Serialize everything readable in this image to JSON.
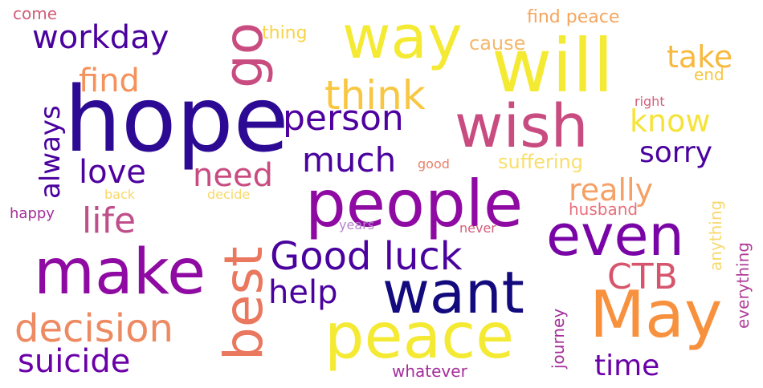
{
  "words": [
    {
      "text": "hope",
      "color": "#2c0a94"
    },
    {
      "text": "will",
      "color": "#f5ea33"
    },
    {
      "text": "way",
      "color": "#f5ea33"
    },
    {
      "text": "wish",
      "color": "#c94c80"
    },
    {
      "text": "people",
      "color": "#8e0aa2"
    },
    {
      "text": "May",
      "color": "#f8913e"
    },
    {
      "text": "make",
      "color": "#8e0aa2"
    },
    {
      "text": "peace",
      "color": "#f5ea33"
    },
    {
      "text": "want",
      "color": "#120a7d"
    },
    {
      "text": "even",
      "color": "#7a05a6"
    },
    {
      "text": "best",
      "color": "#e9785f"
    },
    {
      "text": "go",
      "color": "#c94c80"
    },
    {
      "text": "Good luck",
      "color": "#4a029e"
    },
    {
      "text": "think",
      "color": "#f8c640"
    },
    {
      "text": "person",
      "color": "#4f01a0"
    },
    {
      "text": "workday",
      "color": "#4a029e"
    },
    {
      "text": "decision",
      "color": "#ee8a62"
    },
    {
      "text": "suicide",
      "color": "#6a00a8"
    },
    {
      "text": "much",
      "color": "#4a029e"
    },
    {
      "text": "love",
      "color": "#4f01a0"
    },
    {
      "text": "need",
      "color": "#c94c80"
    },
    {
      "text": "life",
      "color": "#c04e8a"
    },
    {
      "text": "find",
      "color": "#f5915a"
    },
    {
      "text": "CTB",
      "color": "#d6556d"
    },
    {
      "text": "help",
      "color": "#4a029e"
    },
    {
      "text": "always",
      "color": "#4a029e"
    },
    {
      "text": "take",
      "color": "#f8b93f"
    },
    {
      "text": "know",
      "color": "#f5e33a"
    },
    {
      "text": "sorry",
      "color": "#4a029e"
    },
    {
      "text": "really",
      "color": "#f5a065"
    },
    {
      "text": "time",
      "color": "#6a00a8"
    },
    {
      "text": "suffering",
      "color": "#f8de6b"
    },
    {
      "text": "cause",
      "color": "#f5b86d"
    },
    {
      "text": "thing",
      "color": "#f9d348"
    },
    {
      "text": "come",
      "color": "#d25d7a"
    },
    {
      "text": "find peace",
      "color": "#f5a65f"
    },
    {
      "text": "end",
      "color": "#f8c640"
    },
    {
      "text": "right",
      "color": "#d25d7a"
    },
    {
      "text": "good",
      "color": "#e7816a"
    },
    {
      "text": "back",
      "color": "#f8d86a"
    },
    {
      "text": "decide",
      "color": "#f8d86a"
    },
    {
      "text": "happy",
      "color": "#a42e9a"
    },
    {
      "text": "years",
      "color": "#b583cb"
    },
    {
      "text": "never",
      "color": "#d25d7a"
    },
    {
      "text": "husband",
      "color": "#e96f7a"
    },
    {
      "text": "anything",
      "color": "#f8d86a"
    },
    {
      "text": "everything",
      "color": "#b03c98"
    },
    {
      "text": "journey",
      "color": "#a42e9a"
    },
    {
      "text": "whatever",
      "color": "#a42e9a"
    }
  ]
}
